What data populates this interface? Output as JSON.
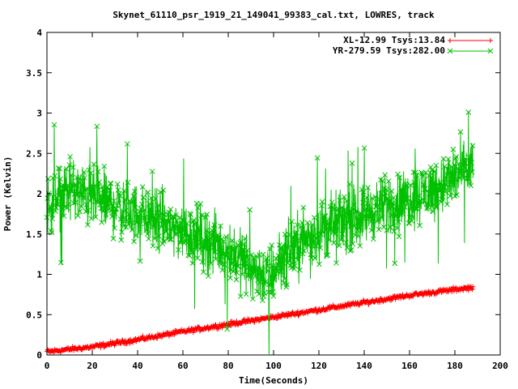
{
  "chart_data": {
    "type": "scatter",
    "title": "Skynet_61110_psr_1919_21_149041_99383_cal.txt, LOWRES, track",
    "xlabel": "Time(Seconds)",
    "ylabel": "Power (Kelvin)",
    "xlim": [
      0,
      200
    ],
    "ylim": [
      0,
      4
    ],
    "x_ticks": [
      0,
      20,
      40,
      60,
      80,
      100,
      120,
      140,
      160,
      180,
      200
    ],
    "y_ticks": [
      0,
      0.5,
      1,
      1.5,
      2,
      2.5,
      3,
      3.5,
      4
    ],
    "grid": false,
    "legend_position": "top-right",
    "series": [
      {
        "name": "XL-12.99 Tsys:13.84",
        "color": "#ff0000",
        "marker": "plus",
        "x_range": [
          0,
          188
        ],
        "trend": [
          [
            0,
            0.04
          ],
          [
            20,
            0.1
          ],
          [
            40,
            0.19
          ],
          [
            60,
            0.29
          ],
          [
            80,
            0.38
          ],
          [
            100,
            0.47
          ],
          [
            120,
            0.56
          ],
          [
            140,
            0.65
          ],
          [
            160,
            0.74
          ],
          [
            188,
            0.84
          ]
        ],
        "scatter_amplitude": 0.04
      },
      {
        "name": "YR-279.59 Tsys:282.00",
        "color": "#00c000",
        "marker": "x",
        "x_range": [
          0,
          188
        ],
        "trend": [
          [
            0,
            1.85
          ],
          [
            10,
            2.05
          ],
          [
            20,
            1.95
          ],
          [
            40,
            1.75
          ],
          [
            60,
            1.55
          ],
          [
            80,
            1.3
          ],
          [
            90,
            1.1
          ],
          [
            98,
            0.95
          ],
          [
            105,
            1.25
          ],
          [
            120,
            1.55
          ],
          [
            140,
            1.75
          ],
          [
            160,
            1.95
          ],
          [
            170,
            2.05
          ],
          [
            180,
            2.2
          ],
          [
            188,
            2.35
          ]
        ],
        "scatter_amplitude": 0.55,
        "max_point": [
          186,
          3.01
        ],
        "min_point": [
          98,
          0.01
        ]
      }
    ]
  }
}
